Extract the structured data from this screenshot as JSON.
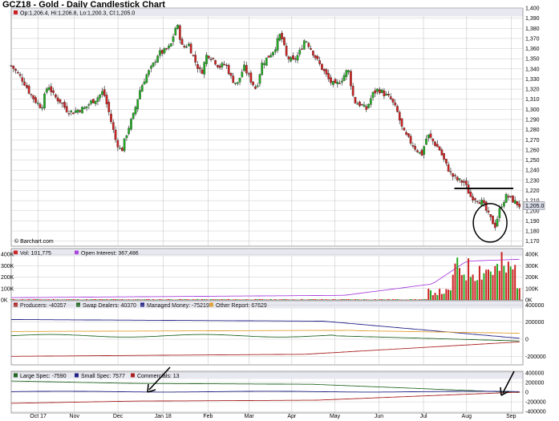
{
  "title": "GCZ18 - Gold - Daily Candlestick Chart",
  "ohlc_label": "Op:1,206.4, Hi:1,206.8, Lo:1,200.3, Cl:1,205.0",
  "watermark": "© Barchart.com",
  "last_price_label": "1,205.0",
  "colors": {
    "up": "#22aa22",
    "down": "#cc2222",
    "grid": "#c8c8c8",
    "panel_border": "#888888",
    "legend_bar": "#e8e8f0",
    "price_tag": "#d8dce8",
    "open_interest": "#aa44dd",
    "producers": "#aa2222",
    "swap_dealers": "#226622",
    "managed_money": "#222288",
    "other_report": "#e0a030",
    "large_spec": "#226622",
    "small_spec": "#222288",
    "commercials": "#aa2222"
  },
  "volume_legend": [
    {
      "label": "Vol: 101,775",
      "color": "#cc2222"
    },
    {
      "label": "Open Interest: 367,486",
      "color": "#aa44dd"
    }
  ],
  "cot1_legend": [
    {
      "label": "Producers: -40357",
      "color": "#aa2222"
    },
    {
      "label": "Swap Dealers: 40370",
      "color": "#226622"
    },
    {
      "label": "Managed Money: -75219",
      "color": "#222288"
    },
    {
      "label": "Other Report: 67629",
      "color": "#e0a030"
    }
  ],
  "cot2_legend": [
    {
      "label": "Large Spec: -7590",
      "color": "#226622"
    },
    {
      "label": "Small Spec: 7577",
      "color": "#222288"
    },
    {
      "label": "Commercials: 13",
      "color": "#aa2222"
    }
  ],
  "chart_data": [
    {
      "type": "candlestick",
      "title": "GCZ18 - Gold - Daily Candlestick Chart",
      "ylim": [
        1165,
        1400
      ],
      "y_ticks": [
        "1,400",
        "1,390",
        "1,380",
        "1,370",
        "1,360",
        "1,350",
        "1,340",
        "1,330",
        "1,320",
        "1,310",
        "1,300",
        "1,290",
        "1,280",
        "1,270",
        "1,260",
        "1,250",
        "1,240",
        "1,230",
        "1,220",
        "1,210",
        "1,200",
        "1,190",
        "1,180",
        "1,170"
      ],
      "y_tick_values": [
        1400,
        1390,
        1380,
        1370,
        1360,
        1350,
        1340,
        1330,
        1320,
        1310,
        1300,
        1290,
        1280,
        1270,
        1260,
        1250,
        1240,
        1230,
        1220,
        1210,
        1200,
        1190,
        1180,
        1170
      ],
      "x_ticks": [
        "Oct 17",
        "Nov",
        "Dec",
        "Jan 18",
        "Feb",
        "Mar",
        "Apr",
        "May",
        "Jun",
        "Jul",
        "Aug",
        "Sep"
      ],
      "x_tick_positions": [
        0.055,
        0.129,
        0.218,
        0.31,
        0.402,
        0.486,
        0.573,
        0.661,
        0.751,
        0.842,
        0.93,
        1.021
      ],
      "close_path": [
        [
          0.0,
          1343
        ],
        [
          0.012,
          1336
        ],
        [
          0.025,
          1328
        ],
        [
          0.038,
          1316
        ],
        [
          0.05,
          1308
        ],
        [
          0.062,
          1302
        ],
        [
          0.075,
          1325
        ],
        [
          0.087,
          1313
        ],
        [
          0.1,
          1308
        ],
        [
          0.112,
          1300
        ],
        [
          0.125,
          1297
        ],
        [
          0.138,
          1300
        ],
        [
          0.15,
          1301
        ],
        [
          0.162,
          1307
        ],
        [
          0.175,
          1311
        ],
        [
          0.188,
          1318
        ],
        [
          0.2,
          1296
        ],
        [
          0.213,
          1270
        ],
        [
          0.225,
          1258
        ],
        [
          0.238,
          1280
        ],
        [
          0.25,
          1295
        ],
        [
          0.262,
          1318
        ],
        [
          0.275,
          1333
        ],
        [
          0.288,
          1342
        ],
        [
          0.3,
          1355
        ],
        [
          0.312,
          1357
        ],
        [
          0.325,
          1362
        ],
        [
          0.338,
          1385
        ],
        [
          0.35,
          1360
        ],
        [
          0.362,
          1365
        ],
        [
          0.375,
          1348
        ],
        [
          0.388,
          1335
        ],
        [
          0.4,
          1355
        ],
        [
          0.412,
          1350
        ],
        [
          0.425,
          1342
        ],
        [
          0.438,
          1345
        ],
        [
          0.45,
          1330
        ],
        [
          0.462,
          1325
        ],
        [
          0.475,
          1342
        ],
        [
          0.488,
          1330
        ],
        [
          0.5,
          1320
        ],
        [
          0.512,
          1345
        ],
        [
          0.525,
          1352
        ],
        [
          0.538,
          1360
        ],
        [
          0.55,
          1375
        ],
        [
          0.562,
          1352
        ],
        [
          0.575,
          1347
        ],
        [
          0.588,
          1355
        ],
        [
          0.6,
          1370
        ],
        [
          0.612,
          1360
        ],
        [
          0.625,
          1348
        ],
        [
          0.638,
          1338
        ],
        [
          0.65,
          1328
        ],
        [
          0.662,
          1323
        ],
        [
          0.675,
          1330
        ],
        [
          0.688,
          1340
        ],
        [
          0.7,
          1308
        ],
        [
          0.712,
          1305
        ],
        [
          0.725,
          1300
        ],
        [
          0.738,
          1315
        ],
        [
          0.75,
          1320
        ],
        [
          0.762,
          1315
        ],
        [
          0.775,
          1310
        ],
        [
          0.788,
          1298
        ],
        [
          0.8,
          1278
        ],
        [
          0.812,
          1270
        ],
        [
          0.825,
          1262
        ],
        [
          0.838,
          1255
        ],
        [
          0.85,
          1275
        ],
        [
          0.862,
          1268
        ],
        [
          0.875,
          1260
        ],
        [
          0.888,
          1245
        ],
        [
          0.9,
          1235
        ],
        [
          0.912,
          1230
        ],
        [
          0.925,
          1228
        ],
        [
          0.938,
          1214
        ],
        [
          0.95,
          1212
        ],
        [
          0.962,
          1208
        ],
        [
          0.975,
          1195
        ],
        [
          0.988,
          1185
        ],
        [
          1.0,
          1205
        ],
        [
          1.012,
          1215
        ],
        [
          1.025,
          1210
        ],
        [
          1.038,
          1205
        ]
      ],
      "annotations": [
        "horizontal resistance line at 1,222",
        "circle around August low near 1,178"
      ]
    },
    {
      "type": "bar",
      "title": "",
      "series": [
        {
          "name": "Vol: 101,775",
          "values_note": "volume bars, rising to ~320K-420K Aug-Sep"
        },
        {
          "name": "Open Interest: 367,486",
          "values_note": "line rising from ~30K to ~360K"
        }
      ],
      "y_ticks": [
        "400K",
        "300K",
        "200K",
        "100K",
        "0K"
      ],
      "ylim": [
        0,
        450000
      ]
    },
    {
      "type": "line",
      "title": "",
      "series": [
        {
          "name": "Producers: -40357"
        },
        {
          "name": "Swap Dealers: 40370"
        },
        {
          "name": "Managed Money: -75219"
        },
        {
          "name": "Other Report: 67629"
        }
      ],
      "y_ticks": [
        "400000",
        "200000",
        "0",
        "-200000"
      ],
      "ylim": [
        -300000,
        450000
      ]
    },
    {
      "type": "line",
      "title": "",
      "series": [
        {
          "name": "Large Spec: -7590"
        },
        {
          "name": "Small Spec: 7577"
        },
        {
          "name": "Commercials: 13"
        }
      ],
      "y_ticks": [
        "400000",
        "200000",
        "0",
        "-200000",
        "-400000"
      ],
      "ylim": [
        -430000,
        430000
      ]
    }
  ]
}
